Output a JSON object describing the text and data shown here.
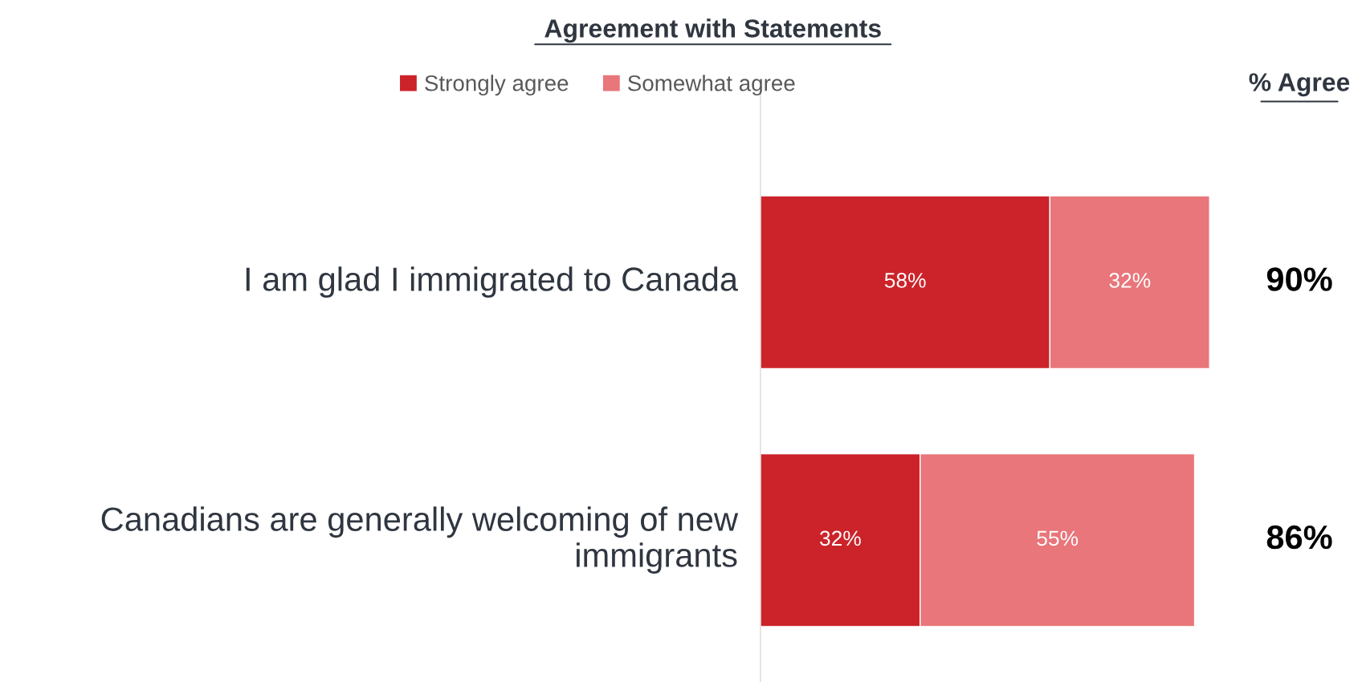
{
  "chart_data": {
    "type": "bar",
    "orientation": "horizontal",
    "stacked": true,
    "title": "Agreement with Statements",
    "categories": [
      "I am glad I immigrated to Canada",
      "Canadians are generally welcoming of new immigrants"
    ],
    "series": [
      {
        "name": "Strongly agree",
        "color": "#cc232a",
        "values": [
          58,
          32
        ],
        "value_labels": [
          "58%",
          "32%"
        ]
      },
      {
        "name": "Somewhat agree",
        "color": "#e8767a",
        "values": [
          32,
          55
        ],
        "value_labels": [
          "32%",
          "55%"
        ]
      }
    ],
    "totals": [
      "90%",
      "86%"
    ],
    "annotations": [
      "% Agree"
    ],
    "legend": "top"
  }
}
